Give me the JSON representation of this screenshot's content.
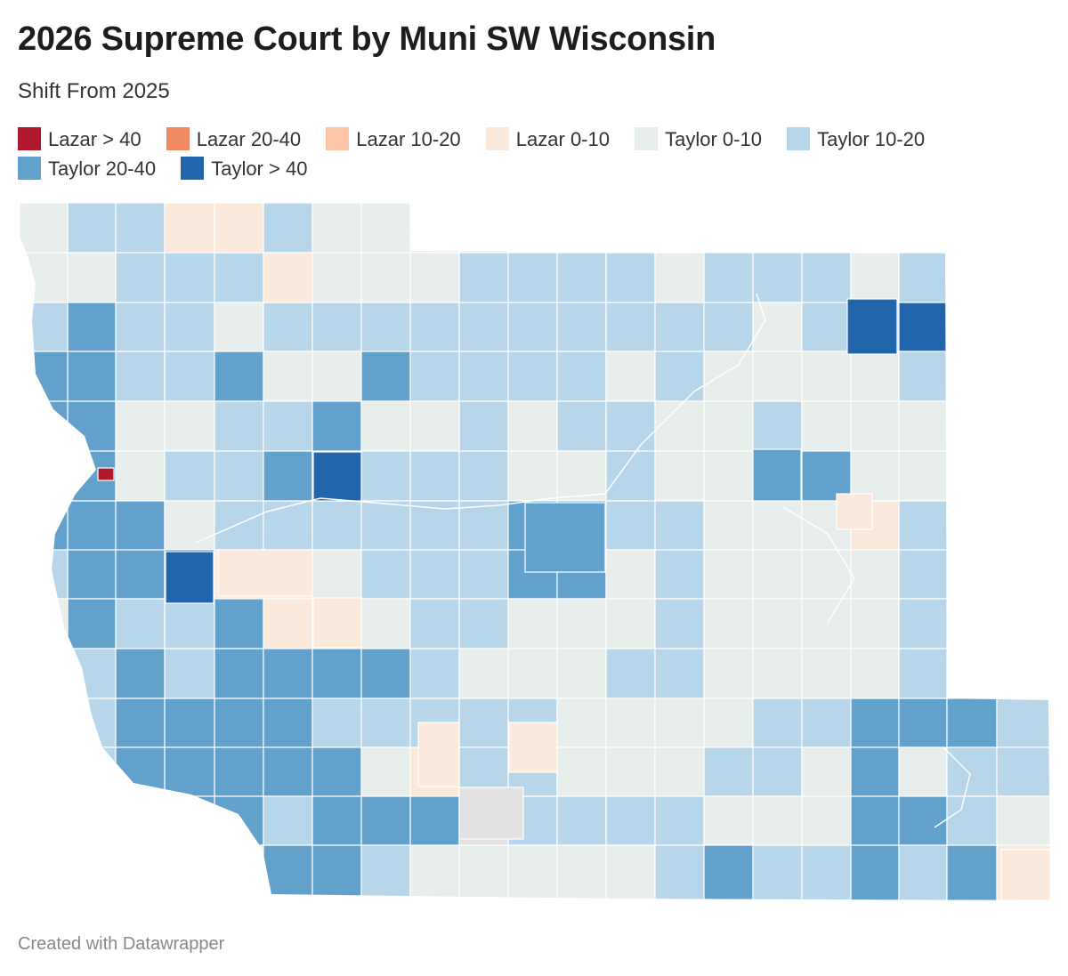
{
  "title": "2026 Supreme Court by Muni SW Wisconsin",
  "subtitle": "Shift From 2025",
  "legend": [
    {
      "label": "Lazar > 40",
      "color": "#b2182b",
      "name": "legend-lazar-gt40"
    },
    {
      "label": "Lazar 20-40",
      "color": "#ef8a62",
      "name": "legend-lazar-20-40"
    },
    {
      "label": "Lazar 10-20",
      "color": "#fcc5a8",
      "name": "legend-lazar-10-20"
    },
    {
      "label": "Lazar 0-10",
      "color": "#fbeadc",
      "name": "legend-lazar-0-10"
    },
    {
      "label": "Taylor 0-10",
      "color": "#e8eeec",
      "name": "legend-taylor-0-10"
    },
    {
      "label": "Taylor 10-20",
      "color": "#b8d6e9",
      "name": "legend-taylor-10-20"
    },
    {
      "label": "Taylor 20-40",
      "color": "#62a1cc",
      "name": "legend-taylor-20-40"
    },
    {
      "label": "Taylor > 40",
      "color": "#2166ac",
      "name": "legend-taylor-gt40"
    }
  ],
  "no_data_color": "#e2e2e2",
  "credit": "Created with Datawrapper"
}
